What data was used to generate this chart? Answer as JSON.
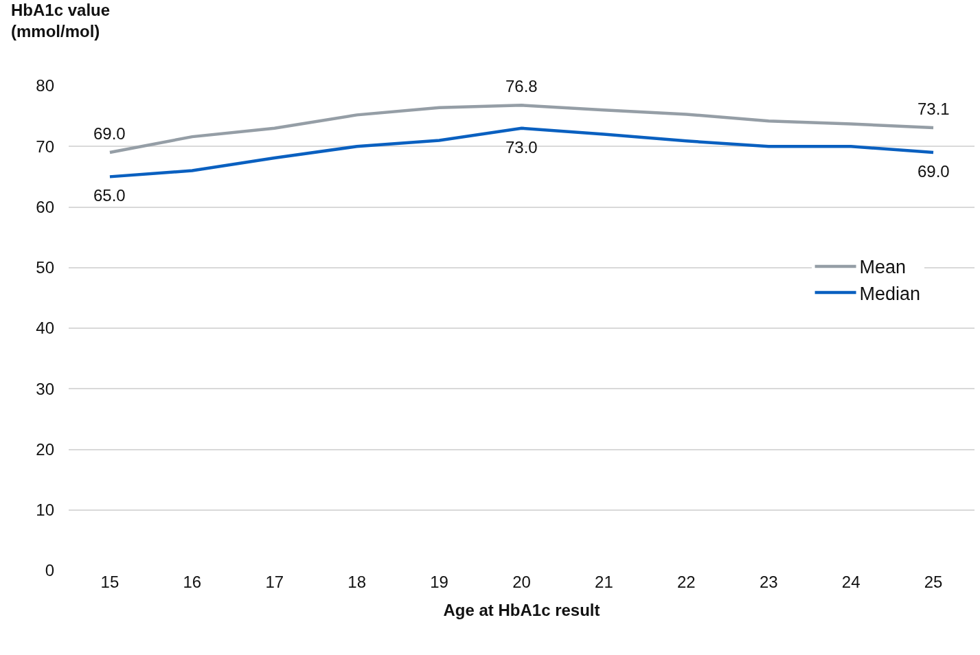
{
  "chart_data": {
    "type": "line",
    "xlabel": "Age at HbA1c result",
    "ylabel": "HbA1c value\n(mmol/mol)",
    "categories": [
      "15",
      "16",
      "17",
      "18",
      "19",
      "20",
      "21",
      "22",
      "23",
      "24",
      "25"
    ],
    "series": [
      {
        "name": "Mean",
        "color": "#959ea6",
        "values": [
          69.0,
          71.6,
          73.0,
          75.2,
          76.4,
          76.8,
          76.0,
          75.3,
          74.2,
          73.7,
          73.1
        ],
        "value_labels": [
          "69.0",
          null,
          null,
          null,
          null,
          "76.8",
          null,
          null,
          null,
          null,
          "73.1"
        ]
      },
      {
        "name": "Median",
        "color": "#0a60c0",
        "values": [
          65.0,
          66.0,
          68.1,
          70.0,
          71.0,
          73.0,
          72.0,
          70.9,
          70.0,
          70.0,
          69.0
        ],
        "value_labels": [
          "65.0",
          null,
          null,
          null,
          null,
          "73.0",
          null,
          null,
          null,
          null,
          "69.0"
        ]
      }
    ],
    "ylim": [
      0,
      80
    ],
    "yticks": [
      0,
      10,
      20,
      30,
      40,
      50,
      60,
      70,
      80
    ],
    "grid": "y",
    "legend": "right",
    "marker": "none",
    "line_style": "solid"
  }
}
